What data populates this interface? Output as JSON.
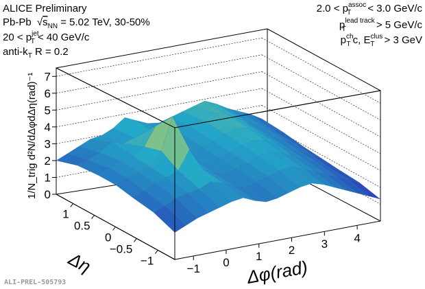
{
  "header": {
    "experiment": "ALICE Preliminary",
    "system_pre": "Pb-Pb ",
    "system_sqrt": "s",
    "system_sub": "NN",
    "system_post": " = 5.02 TeV,  30-50%",
    "jet_pre": "20 < p",
    "jet_sup": "jet",
    "jet_sub": "T",
    "jet_post": " < 40 GeV/c",
    "algo_pre": "anti-k",
    "algo_sub": "T",
    "algo_post": " R = 0.2",
    "assoc_pre": "2.0 < p",
    "assoc_sup": "assoc",
    "assoc_sub": "T",
    "assoc_post": " < 3.0 GeV/c",
    "lead_pre": "p",
    "lead_sup": "lead track",
    "lead_sub": "T",
    "lead_post": " > 5 GeV/c",
    "clus_pre": "p",
    "clus_sup": "ch",
    "clus_sub": "T",
    "clus_mid": "c, E",
    "clus_sup2": "clus",
    "clus_sub2": "T",
    "clus_post": " > 3 GeV"
  },
  "credit": "ALI-PREL-505793",
  "colors": {
    "low": "#2a47b8",
    "mid": "#22a8c8",
    "high": "#f6e53a"
  },
  "chart_data": {
    "type": "surface",
    "title": "",
    "xlabel": "Δφ(rad)",
    "ylabel": "Δη",
    "zlabel": "1/N_trig d²N/dΔφdΔη(rad)⁻¹",
    "xlim": [
      -1.57,
      4.71
    ],
    "ylim": [
      -1.4,
      1.4
    ],
    "zlim": [
      0,
      7.5
    ],
    "x_ticks": [
      "−1",
      "0",
      "1",
      "2",
      "3",
      "4"
    ],
    "y_ticks": [
      "1",
      "0.5",
      "0",
      "−0.5",
      "−1"
    ],
    "z_ticks": [
      "0",
      "1",
      "2",
      "3",
      "4",
      "5",
      "6",
      "7"
    ],
    "near_side_peak": {
      "dphi": 0,
      "deta": 0,
      "value": 5.9
    },
    "pedestal": 2.9,
    "away_side_ridge": {
      "dphi": 3.14,
      "value": 3.5
    },
    "grid_rows": [
      {
        "deta": 1.4,
        "values": [
          2.0,
          2.3,
          2.6,
          2.9,
          3.0,
          3.3,
          3.8,
          3.5,
          3.2,
          3.1,
          3.3,
          3.5,
          3.7,
          3.9,
          3.6,
          3.2,
          2.9,
          2.6,
          2.2
        ]
      },
      {
        "deta": 0.9,
        "values": [
          2.4,
          2.6,
          2.9,
          3.4,
          3.2,
          3.4,
          3.6,
          3.3,
          3.0,
          3.2,
          3.4,
          3.7,
          4.0,
          3.8,
          3.5,
          3.0,
          2.8,
          2.4,
          2.1
        ]
      },
      {
        "deta": 0.4,
        "values": [
          2.5,
          2.8,
          3.1,
          3.3,
          3.7,
          4.8,
          3.5,
          3.1,
          2.9,
          3.1,
          3.3,
          3.6,
          3.8,
          3.7,
          3.3,
          2.9,
          2.7,
          2.3,
          1.9
        ]
      },
      {
        "deta": 0.0,
        "values": [
          2.5,
          2.8,
          3.0,
          3.2,
          4.0,
          5.9,
          3.7,
          3.0,
          2.9,
          3.0,
          3.2,
          3.5,
          3.6,
          3.5,
          3.2,
          2.8,
          2.5,
          2.2,
          1.8
        ]
      },
      {
        "deta": -0.4,
        "values": [
          2.3,
          2.6,
          2.9,
          3.1,
          3.4,
          4.5,
          3.3,
          2.9,
          2.7,
          2.9,
          3.1,
          3.4,
          3.5,
          3.3,
          3.0,
          2.7,
          2.4,
          2.0,
          1.7
        ]
      },
      {
        "deta": -0.9,
        "values": [
          2.1,
          2.4,
          2.7,
          2.9,
          3.0,
          3.3,
          3.1,
          2.8,
          2.6,
          2.8,
          3.0,
          3.2,
          3.3,
          3.1,
          2.8,
          2.5,
          2.2,
          1.9,
          1.6
        ]
      },
      {
        "deta": -1.4,
        "values": [
          1.6,
          1.9,
          2.2,
          2.4,
          2.6,
          2.8,
          2.9,
          2.6,
          2.4,
          2.5,
          2.7,
          2.9,
          3.0,
          2.8,
          2.5,
          2.2,
          1.9,
          1.6,
          1.3
        ]
      }
    ],
    "grid": "dashed",
    "legend": "none"
  }
}
